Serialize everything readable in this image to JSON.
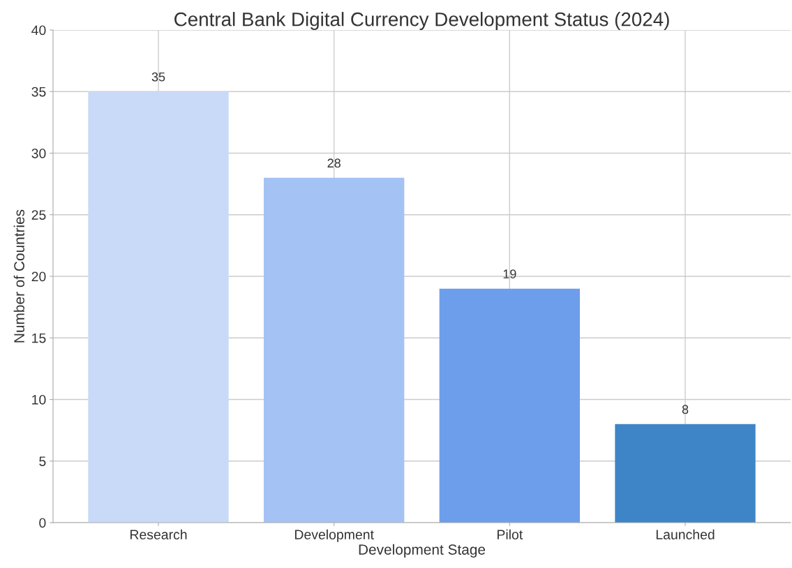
{
  "chart_data": {
    "type": "bar",
    "title": "Central Bank Digital Currency Development Status (2024)",
    "xlabel": "Development Stage",
    "ylabel": "Number of Countries",
    "categories": [
      "Research",
      "Development",
      "Pilot",
      "Launched"
    ],
    "values": [
      35,
      28,
      19,
      8
    ],
    "colors": [
      "#c9daf8",
      "#a4c2f4",
      "#6d9eeb",
      "#3d85c6"
    ],
    "ylim": [
      0,
      40
    ],
    "yticks": [
      0,
      5,
      10,
      15,
      20,
      25,
      30,
      35,
      40
    ],
    "grid": true,
    "data_labels": true
  }
}
